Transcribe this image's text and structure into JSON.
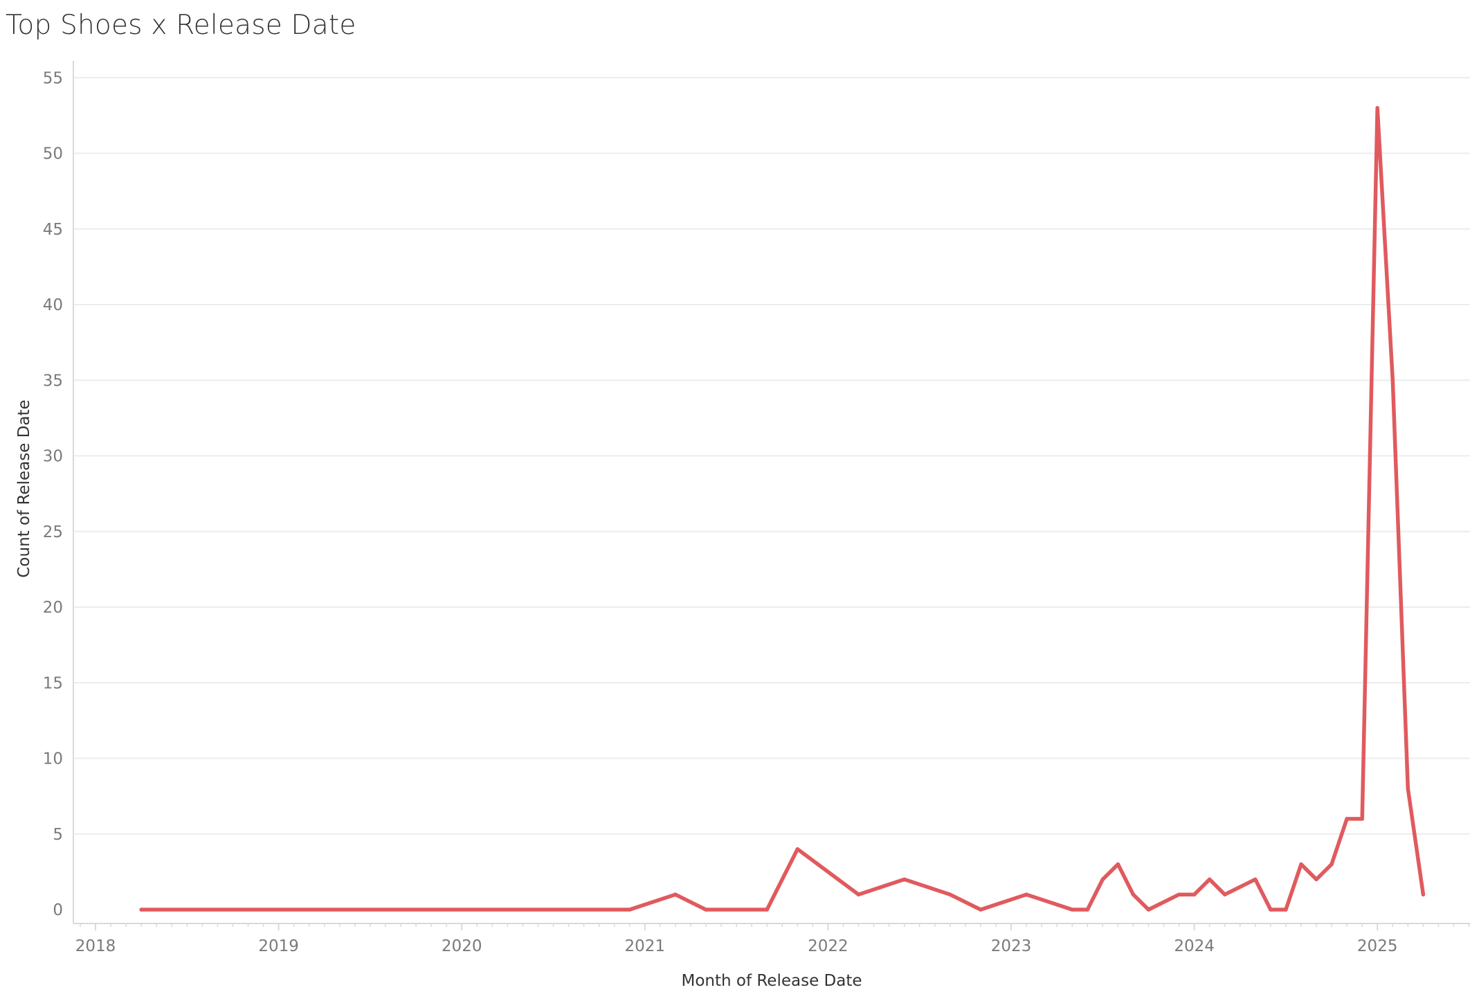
{
  "chart_data": {
    "type": "line",
    "title": "Top Shoes x Release Date",
    "xlabel": "Month of Release Date",
    "ylabel": "Count of Release Date",
    "ylim": [
      -1,
      55
    ],
    "y_ticks": [
      0,
      5,
      10,
      15,
      20,
      25,
      30,
      35,
      40,
      45,
      50,
      55
    ],
    "x_ticks": [
      "2018",
      "2019",
      "2020",
      "2021",
      "2022",
      "2023",
      "2024",
      "2025"
    ],
    "x_range": [
      "2017-12",
      "2025-09"
    ],
    "grid": true,
    "colors": {
      "line": "#e05a5e",
      "grid": "#ececec",
      "axis": "#d9d9d9"
    },
    "series": [
      {
        "x": [
          "2018-04",
          "2020-12",
          "2021-03",
          "2021-05",
          "2021-09",
          "2021-11",
          "2022-03",
          "2022-06",
          "2022-09",
          "2022-11",
          "2023-02",
          "2023-05",
          "2023-06",
          "2023-07",
          "2023-08",
          "2023-09",
          "2023-10",
          "2023-12",
          "2024-01",
          "2024-02",
          "2024-03",
          "2024-05",
          "2024-06",
          "2024-07",
          "2024-08",
          "2024-09",
          "2024-10",
          "2024-11",
          "2024-12",
          "2025-01",
          "2025-02",
          "2025-03",
          "2025-04"
        ],
        "values": [
          0,
          0,
          1,
          0,
          0,
          4,
          1,
          2,
          1,
          0,
          1,
          0,
          0,
          2,
          3,
          1,
          0,
          1,
          1,
          2,
          1,
          2,
          0,
          0,
          3,
          2,
          3,
          6,
          6,
          53,
          35,
          8,
          1
        ]
      }
    ]
  }
}
